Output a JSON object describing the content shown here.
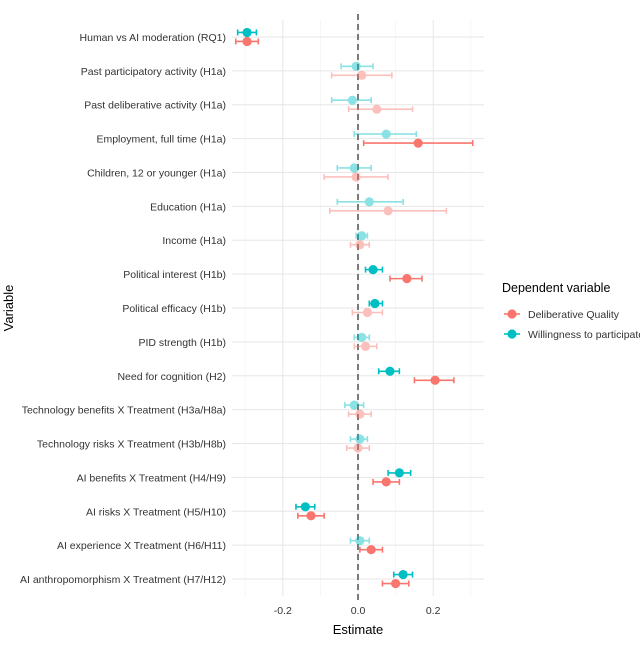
{
  "chart_data": {
    "type": "dot-whisker",
    "xlabel": "Estimate",
    "ylabel": "Variable",
    "xlim": [
      -0.335,
      0.335
    ],
    "x_ticks": [
      -0.2,
      0.0,
      0.2
    ],
    "x_tick_labels": [
      "-0.2",
      "0.0",
      "0.2"
    ],
    "reference_line": 0,
    "grid": true,
    "legend": {
      "title": "Dependent variable",
      "placement": "right",
      "entries": [
        "Deliberative Quality",
        "Willingness to participate"
      ]
    },
    "categories": [
      "Human vs AI moderation (RQ1)",
      "Past participatory activity (H1a)",
      "Past deliberative activity (H1a)",
      "Employment, full time (H1a)",
      "Children, 12 or younger (H1a)",
      "Education (H1a)",
      "Income (H1a)",
      "Political interest (H1b)",
      "Political efficacy (H1b)",
      "PID strength (H1b)",
      "Need for cognition (H2)",
      "Technology benefits X Treatment (H3a/H8a)",
      "Technology risks X Treatment (H3b/H8b)",
      "AI benefits X Treatment (H4/H9)",
      "AI risks X Treatment (H5/H10)",
      "AI experience X Treatment (H6/H11)",
      "AI anthropomorphism X Treatment (H7/H12)"
    ],
    "series": [
      {
        "name": "Deliberative Quality",
        "color": "#F8766D",
        "estimates": [
          -0.295,
          0.01,
          0.05,
          0.16,
          -0.005,
          0.08,
          0.005,
          0.13,
          0.025,
          0.02,
          0.205,
          0.005,
          0.0,
          0.075,
          -0.125,
          0.035,
          0.1
        ],
        "lower": [
          -0.325,
          -0.07,
          -0.025,
          0.015,
          -0.09,
          -0.075,
          -0.02,
          0.085,
          -0.015,
          -0.01,
          0.15,
          -0.025,
          -0.03,
          0.04,
          -0.16,
          0.005,
          0.065
        ],
        "upper": [
          -0.265,
          0.09,
          0.145,
          0.305,
          0.08,
          0.235,
          0.03,
          0.17,
          0.065,
          0.05,
          0.255,
          0.035,
          0.03,
          0.11,
          -0.09,
          0.065,
          0.135
        ],
        "significant": [
          true,
          false,
          false,
          true,
          false,
          false,
          false,
          true,
          false,
          false,
          true,
          false,
          false,
          true,
          true,
          true,
          true
        ]
      },
      {
        "name": "Willingness to participate",
        "color": "#00BFC4",
        "estimates": [
          -0.295,
          -0.005,
          -0.015,
          0.075,
          -0.01,
          0.03,
          0.01,
          0.04,
          0.045,
          0.01,
          0.085,
          -0.01,
          0.005,
          0.11,
          -0.14,
          0.005,
          0.12
        ],
        "lower": [
          -0.32,
          -0.045,
          -0.07,
          -0.01,
          -0.055,
          -0.055,
          -0.005,
          0.02,
          0.03,
          -0.01,
          0.055,
          -0.035,
          -0.02,
          0.08,
          -0.165,
          -0.02,
          0.095
        ],
        "upper": [
          -0.27,
          0.04,
          0.035,
          0.155,
          0.035,
          0.12,
          0.025,
          0.065,
          0.065,
          0.03,
          0.11,
          0.015,
          0.025,
          0.14,
          -0.115,
          0.03,
          0.145
        ],
        "significant": [
          true,
          false,
          false,
          false,
          false,
          false,
          false,
          true,
          true,
          false,
          true,
          false,
          false,
          true,
          true,
          false,
          true
        ]
      }
    ]
  }
}
